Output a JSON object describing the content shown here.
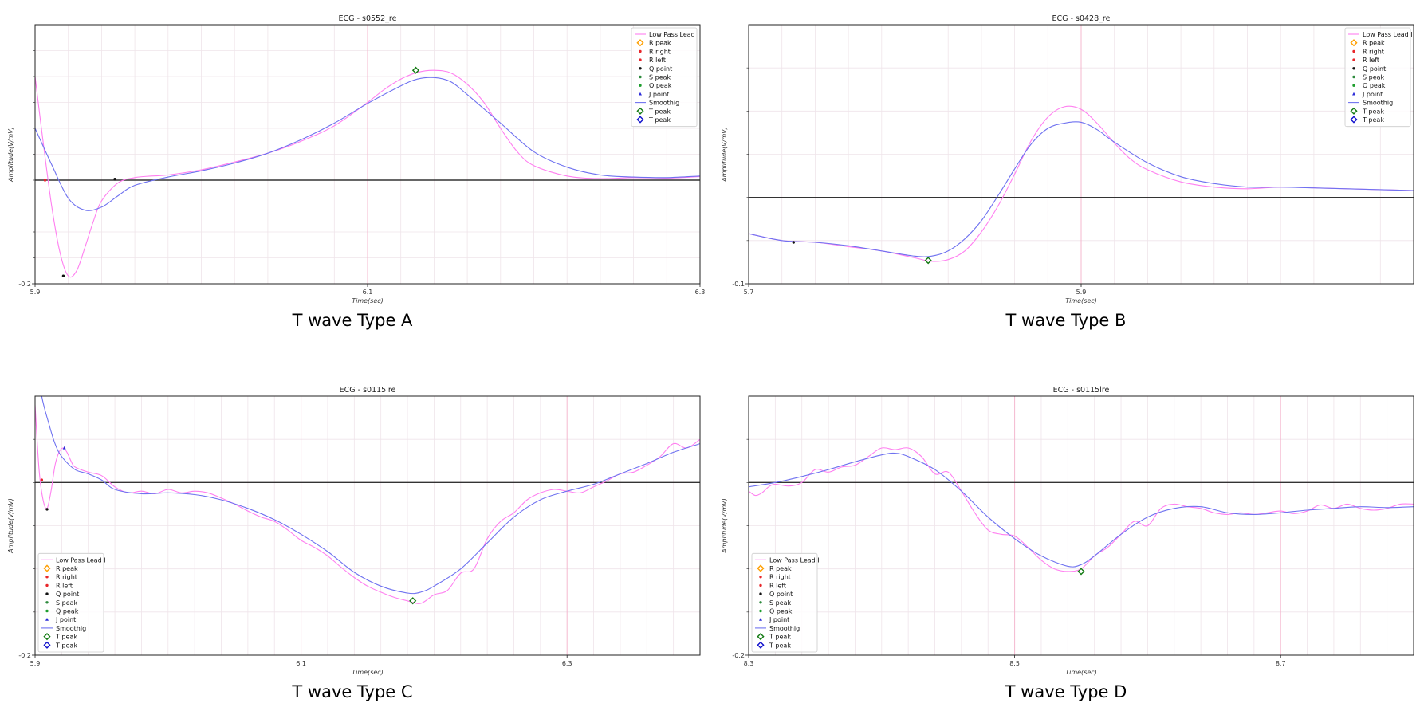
{
  "colors": {
    "low_pass": "#ff7ff0",
    "smoothing": "#6f72f0",
    "baseline": "#333333",
    "grid_major": "#f4b8cf",
    "grid_minor": "#efe4ea",
    "r_peak": "#ff9f00",
    "r_point": "#e8262a",
    "q_point": "#111111",
    "s_peak": "#2e8b3e",
    "q_peak": "#1e9e2e",
    "j_point": "#2b2bd8",
    "t_peak_green": "#117a11",
    "t_peak_blue": "#1010cc"
  },
  "legend_labels": [
    "Low Pass Lead I",
    "R peak",
    "R right",
    "R left",
    "Q point",
    "S peak",
    "Q peak",
    "J point",
    "Smoothig",
    "T peak",
    "T peak"
  ],
  "chart_data": [
    {
      "type": "line",
      "title": "ECG - s0552_re",
      "caption": "T wave Type A",
      "xlabel": "Time(sec)",
      "ylabel": "Amplitude(V/mV)",
      "xlim": [
        5.9,
        6.3
      ],
      "ylim": [
        -0.2,
        0.3
      ],
      "xticks": [
        5.9,
        6.1,
        6.3
      ],
      "ytick_labels": [
        {
          "value": -0.2,
          "label": "-0.2"
        }
      ],
      "baseline": 0,
      "grid": true,
      "legend": "top-right",
      "series": [
        {
          "name": "Low Pass Lead I",
          "kind": "lowpass",
          "x": [
            5.9,
            5.905,
            5.91,
            5.915,
            5.92,
            5.925,
            5.93,
            5.935,
            5.94,
            5.95,
            5.96,
            5.97,
            5.98,
            6.0,
            6.02,
            6.04,
            6.06,
            6.08,
            6.1,
            6.11,
            6.12,
            6.13,
            6.14,
            6.15,
            6.16,
            6.17,
            6.18,
            6.19,
            6.2,
            6.22,
            6.24,
            6.26,
            6.28,
            6.3
          ],
          "y": [
            0.2,
            0.07,
            -0.05,
            -0.14,
            -0.185,
            -0.175,
            -0.13,
            -0.08,
            -0.04,
            -0.005,
            0.005,
            0.008,
            0.01,
            0.02,
            0.035,
            0.052,
            0.075,
            0.105,
            0.15,
            0.175,
            0.195,
            0.208,
            0.212,
            0.207,
            0.185,
            0.15,
            0.1,
            0.055,
            0.028,
            0.008,
            0.003,
            0.005,
            0.004,
            0.007
          ]
        },
        {
          "name": "Smoothig",
          "kind": "smoothing",
          "x": [
            5.9,
            5.91,
            5.92,
            5.93,
            5.94,
            5.95,
            5.96,
            5.98,
            6.0,
            6.02,
            6.04,
            6.06,
            6.08,
            6.1,
            6.12,
            6.13,
            6.14,
            6.15,
            6.16,
            6.18,
            6.2,
            6.22,
            6.24,
            6.26,
            6.28,
            6.3
          ],
          "y": [
            0.1,
            0.03,
            -0.035,
            -0.058,
            -0.052,
            -0.03,
            -0.01,
            0.006,
            0.018,
            0.033,
            0.052,
            0.078,
            0.11,
            0.148,
            0.182,
            0.195,
            0.198,
            0.19,
            0.165,
            0.11,
            0.055,
            0.025,
            0.01,
            0.006,
            0.005,
            0.008
          ]
        }
      ],
      "markers": [
        {
          "label": "R left",
          "x": 5.906,
          "y": 0.0
        },
        {
          "label": "Q point",
          "x": 5.917,
          "y": -0.185
        },
        {
          "label": "J point",
          "x": 5.948,
          "y": 0.002
        },
        {
          "label": "T peak",
          "x": 6.129,
          "y": 0.212
        }
      ]
    },
    {
      "type": "line",
      "title": "ECG - s0428_re",
      "caption": "T wave Type B",
      "xlabel": "Time(sec)",
      "ylabel": "Amplitude(V/mV)",
      "xlim": [
        5.7,
        6.1
      ],
      "ylim": [
        -0.1,
        0.2
      ],
      "xticks": [
        5.7,
        5.9
      ],
      "ytick_labels": [
        {
          "value": -0.1,
          "label": "-0.1"
        }
      ],
      "baseline": 0,
      "grid": true,
      "legend": "top-right",
      "series": [
        {
          "name": "Low Pass Lead I",
          "kind": "lowpass",
          "x": [
            5.7,
            5.72,
            5.74,
            5.76,
            5.78,
            5.8,
            5.81,
            5.82,
            5.83,
            5.84,
            5.85,
            5.86,
            5.87,
            5.88,
            5.89,
            5.9,
            5.91,
            5.92,
            5.93,
            5.94,
            5.96,
            5.98,
            6.0,
            6.02,
            6.04,
            6.06,
            6.08,
            6.1
          ],
          "y": [
            -0.042,
            -0.05,
            -0.052,
            -0.057,
            -0.062,
            -0.07,
            -0.074,
            -0.072,
            -0.062,
            -0.04,
            -0.01,
            0.027,
            0.066,
            0.093,
            0.105,
            0.102,
            0.085,
            0.063,
            0.044,
            0.032,
            0.018,
            0.012,
            0.01,
            0.012,
            0.011,
            0.01,
            0.009,
            0.008
          ]
        },
        {
          "name": "Smoothig",
          "kind": "smoothing",
          "x": [
            5.7,
            5.72,
            5.74,
            5.76,
            5.78,
            5.8,
            5.81,
            5.82,
            5.83,
            5.84,
            5.85,
            5.86,
            5.87,
            5.88,
            5.89,
            5.9,
            5.91,
            5.92,
            5.94,
            5.96,
            5.98,
            6.0,
            6.02,
            6.04,
            6.06,
            6.08,
            6.1
          ],
          "y": [
            -0.042,
            -0.05,
            -0.052,
            -0.056,
            -0.062,
            -0.068,
            -0.068,
            -0.062,
            -0.048,
            -0.027,
            0.002,
            0.033,
            0.062,
            0.08,
            0.086,
            0.087,
            0.078,
            0.064,
            0.04,
            0.024,
            0.016,
            0.012,
            0.012,
            0.011,
            0.01,
            0.009,
            0.008
          ]
        }
      ],
      "markers": [
        {
          "label": "Q point",
          "x": 5.727,
          "y": -0.052
        },
        {
          "label": "T peak",
          "x": 5.808,
          "y": -0.073
        }
      ]
    },
    {
      "type": "line",
      "title": "ECG - s0115lre",
      "caption": "T wave Type C",
      "xlabel": "Time(sec)",
      "ylabel": "Amplitude(V/mV)",
      "xlim": [
        5.9,
        6.4
      ],
      "ylim": [
        -0.2,
        0.1
      ],
      "xticks": [
        5.9,
        6.1,
        6.3
      ],
      "ytick_labels": [
        {
          "value": -0.2,
          "label": "-0.2"
        }
      ],
      "baseline": 0,
      "grid": true,
      "legend": "bottom-left",
      "series": [
        {
          "name": "Low Pass Lead I",
          "kind": "lowpass",
          "x": [
            5.9,
            5.903,
            5.906,
            5.909,
            5.912,
            5.915,
            5.918,
            5.921,
            5.924,
            5.927,
            5.93,
            5.94,
            5.95,
            5.96,
            5.97,
            5.98,
            5.99,
            6.0,
            6.01,
            6.02,
            6.03,
            6.04,
            6.05,
            6.06,
            6.07,
            6.08,
            6.09,
            6.1,
            6.11,
            6.12,
            6.13,
            6.14,
            6.15,
            6.16,
            6.17,
            6.18,
            6.19,
            6.2,
            6.21,
            6.22,
            6.23,
            6.24,
            6.25,
            6.26,
            6.27,
            6.28,
            6.29,
            6.3,
            6.31,
            6.32,
            6.33,
            6.34,
            6.35,
            6.36,
            6.37,
            6.38,
            6.39,
            6.4
          ],
          "y": [
            0.09,
            0.015,
            -0.02,
            -0.03,
            -0.01,
            0.02,
            0.035,
            0.04,
            0.035,
            0.025,
            0.018,
            0.012,
            0.008,
            -0.005,
            -0.012,
            -0.01,
            -0.013,
            -0.008,
            -0.012,
            -0.01,
            -0.012,
            -0.018,
            -0.025,
            -0.033,
            -0.04,
            -0.045,
            -0.055,
            -0.067,
            -0.075,
            -0.085,
            -0.098,
            -0.11,
            -0.12,
            -0.127,
            -0.133,
            -0.137,
            -0.14,
            -0.13,
            -0.125,
            -0.105,
            -0.1,
            -0.065,
            -0.045,
            -0.035,
            -0.02,
            -0.012,
            -0.008,
            -0.01,
            -0.012,
            -0.005,
            0.002,
            0.01,
            0.012,
            0.02,
            0.03,
            0.045,
            0.04,
            0.05
          ]
        },
        {
          "name": "Smoothig",
          "kind": "smoothing",
          "x": [
            5.9,
            5.905,
            5.91,
            5.915,
            5.92,
            5.93,
            5.94,
            5.95,
            5.96,
            5.98,
            6.0,
            6.02,
            6.04,
            6.06,
            6.08,
            6.1,
            6.12,
            6.14,
            6.16,
            6.18,
            6.19,
            6.2,
            6.22,
            6.24,
            6.26,
            6.28,
            6.3,
            6.32,
            6.34,
            6.36,
            6.38,
            6.4
          ],
          "y": [
            0.15,
            0.1,
            0.07,
            0.045,
            0.03,
            0.015,
            0.01,
            0.003,
            -0.008,
            -0.013,
            -0.012,
            -0.014,
            -0.02,
            -0.03,
            -0.043,
            -0.06,
            -0.08,
            -0.104,
            -0.12,
            -0.128,
            -0.127,
            -0.12,
            -0.1,
            -0.07,
            -0.04,
            -0.02,
            -0.01,
            -0.002,
            0.01,
            0.022,
            0.035,
            0.045
          ]
        }
      ],
      "markers": [
        {
          "label": "R left",
          "x": 5.905,
          "y": 0.003
        },
        {
          "label": "Q point",
          "x": 5.909,
          "y": -0.031
        },
        {
          "label": "J point",
          "x": 5.922,
          "y": 0.04
        },
        {
          "label": "T peak",
          "x": 6.184,
          "y": -0.137
        }
      ]
    },
    {
      "type": "line",
      "title": "ECG - s0115lre",
      "caption": "T wave Type D",
      "xlabel": "Time(sec)",
      "ylabel": "Amplitude(V/mV)",
      "xlim": [
        8.3,
        8.8
      ],
      "ylim": [
        -0.2,
        0.1
      ],
      "xticks": [
        8.3,
        8.5,
        8.7
      ],
      "ytick_labels": [
        {
          "value": -0.2,
          "label": "-0.2"
        }
      ],
      "baseline": 0,
      "grid": true,
      "legend": "bottom-left",
      "series": [
        {
          "name": "Low Pass Lead I",
          "kind": "lowpass",
          "x": [
            8.3,
            8.305,
            8.31,
            8.315,
            8.32,
            8.33,
            8.34,
            8.35,
            8.36,
            8.37,
            8.38,
            8.39,
            8.4,
            8.41,
            8.42,
            8.43,
            8.44,
            8.45,
            8.46,
            8.47,
            8.48,
            8.49,
            8.5,
            8.51,
            8.52,
            8.53,
            8.54,
            8.55,
            8.56,
            8.57,
            8.58,
            8.59,
            8.6,
            8.61,
            8.62,
            8.63,
            8.64,
            8.65,
            8.66,
            8.67,
            8.68,
            8.69,
            8.7,
            8.71,
            8.72,
            8.73,
            8.74,
            8.75,
            8.76,
            8.77,
            8.78,
            8.79,
            8.8
          ],
          "y": [
            -0.01,
            -0.015,
            -0.012,
            -0.005,
            -0.002,
            -0.004,
            0.0,
            0.015,
            0.012,
            0.018,
            0.02,
            0.03,
            0.04,
            0.038,
            0.04,
            0.03,
            0.01,
            0.012,
            -0.01,
            -0.035,
            -0.055,
            -0.06,
            -0.062,
            -0.075,
            -0.09,
            -0.1,
            -0.103,
            -0.1,
            -0.085,
            -0.075,
            -0.06,
            -0.045,
            -0.05,
            -0.03,
            -0.025,
            -0.028,
            -0.03,
            -0.035,
            -0.037,
            -0.035,
            -0.037,
            -0.035,
            -0.033,
            -0.036,
            -0.033,
            -0.026,
            -0.03,
            -0.025,
            -0.03,
            -0.032,
            -0.03,
            -0.025,
            -0.025
          ]
        },
        {
          "name": "Smoothig",
          "kind": "smoothing",
          "x": [
            8.3,
            8.32,
            8.34,
            8.36,
            8.38,
            8.4,
            8.41,
            8.42,
            8.44,
            8.46,
            8.48,
            8.5,
            8.52,
            8.54,
            8.55,
            8.56,
            8.58,
            8.6,
            8.62,
            8.64,
            8.66,
            8.68,
            8.7,
            8.72,
            8.74,
            8.76,
            8.78,
            8.8
          ],
          "y": [
            -0.005,
            0.0,
            0.007,
            0.015,
            0.024,
            0.032,
            0.034,
            0.03,
            0.015,
            -0.01,
            -0.04,
            -0.065,
            -0.085,
            -0.097,
            -0.095,
            -0.085,
            -0.06,
            -0.04,
            -0.03,
            -0.028,
            -0.035,
            -0.037,
            -0.035,
            -0.032,
            -0.03,
            -0.028,
            -0.029,
            -0.028
          ]
        }
      ],
      "markers": [
        {
          "label": "T peak",
          "x": 8.55,
          "y": -0.103
        }
      ]
    }
  ]
}
